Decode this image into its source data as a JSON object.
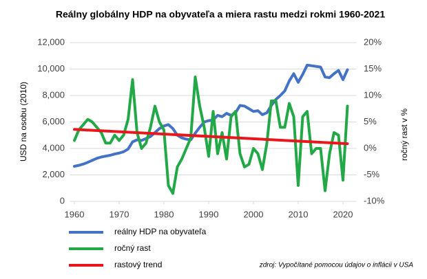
{
  "chart_data": {
    "type": "line",
    "title": "Reálny globálny HDP na obyvateľa a miera rastu medzi rokmi 1960-2021",
    "y_label": "USD na osobu (2010)",
    "y2_label": "ročný rast v %",
    "note": "zdroj: Vypočítané pomocou údajov o inflácii v USA",
    "x": [
      1960,
      1961,
      1962,
      1963,
      1964,
      1965,
      1966,
      1967,
      1968,
      1969,
      1970,
      1971,
      1972,
      1973,
      1974,
      1975,
      1976,
      1977,
      1978,
      1979,
      1980,
      1981,
      1982,
      1983,
      1984,
      1985,
      1986,
      1987,
      1988,
      1989,
      1990,
      1991,
      1992,
      1993,
      1994,
      1995,
      1996,
      1997,
      1998,
      1999,
      2000,
      2001,
      2002,
      2003,
      2004,
      2005,
      2006,
      2007,
      2008,
      2009,
      2010,
      2011,
      2012,
      2013,
      2014,
      2015,
      2016,
      2017,
      2018,
      2019,
      2020,
      2021
    ],
    "xlim": [
      1959,
      2023
    ],
    "xticks": [
      1960,
      1970,
      1980,
      1990,
      2000,
      2010,
      2020
    ],
    "ylim": [
      0,
      12000
    ],
    "yticks": [
      0,
      {
        "value": 2000,
        "label": "2,000"
      },
      {
        "value": 4000,
        "label": "4,000"
      },
      {
        "value": 6000,
        "label": "6,000"
      },
      {
        "value": 8000,
        "label": "8,000"
      },
      {
        "value": 10000,
        "label": "10,000"
      },
      {
        "value": 12000,
        "label": "12,000"
      }
    ],
    "y2lim": [
      -10,
      20
    ],
    "y2ticks": [
      {
        "value": -10,
        "label": "-10%"
      },
      {
        "value": -5,
        "label": "-5%"
      },
      {
        "value": 0,
        "label": "0%"
      },
      {
        "value": 5,
        "label": "5%"
      },
      {
        "value": 10,
        "label": "10%"
      },
      {
        "value": 15,
        "label": "15%"
      },
      {
        "value": 20,
        "label": "20%"
      }
    ],
    "grid": true,
    "series": [
      {
        "name": "reálny HDP na obyvateľa",
        "color": "#4472c4",
        "values": [
          2650,
          2720,
          2820,
          2950,
          3100,
          3250,
          3350,
          3420,
          3480,
          3580,
          3650,
          3750,
          3950,
          4500,
          4650,
          4600,
          4750,
          4900,
          5200,
          5500,
          5700,
          5800,
          5500,
          5000,
          4800,
          4700,
          4650,
          5150,
          5600,
          6000,
          6100,
          6150,
          6500,
          6400,
          6650,
          6500,
          6700,
          7250,
          7200,
          7000,
          6800,
          6850,
          6550,
          6700,
          7250,
          7700,
          8000,
          8350,
          9100,
          9650,
          9000,
          9600,
          10300,
          10250,
          10200,
          10150,
          9400,
          9350,
          9650,
          9900,
          9200,
          9950
        ]
      },
      {
        "name": "ročný rast",
        "color": "#22a846",
        "axis": "y2",
        "values": [
          1.5,
          3.5,
          4.5,
          5.5,
          5,
          4,
          3,
          1,
          1,
          2.5,
          1.5,
          2.5,
          5.5,
          13,
          3,
          0,
          1,
          4,
          8,
          5,
          3.5,
          -7,
          -8.5,
          -3.5,
          -2,
          0,
          2,
          13.5,
          8,
          4,
          -1.5,
          7,
          -1,
          3,
          -2,
          6,
          7,
          -1,
          -3.5,
          -3,
          0,
          -1,
          -4,
          1,
          9,
          9,
          4,
          4,
          8.5,
          6,
          -7,
          6,
          7,
          -1,
          0,
          0,
          -8,
          -1,
          3,
          2.5,
          -6,
          8
        ]
      },
      {
        "name": "rastový trend",
        "color": "#e8171b",
        "axis": "y2",
        "x": [
          1960,
          2021
        ],
        "values": [
          3.6,
          0.9
        ]
      }
    ]
  }
}
